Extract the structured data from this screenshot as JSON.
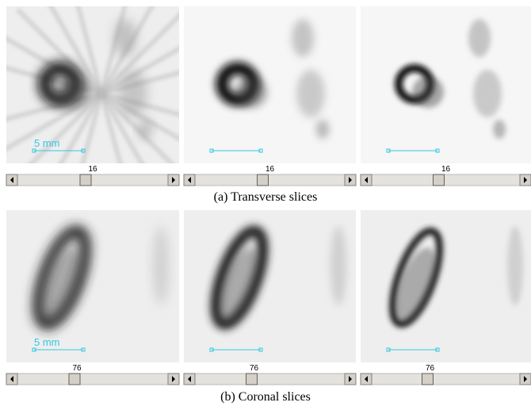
{
  "figures": [
    {
      "caption": "(a) Transverse slices",
      "panels": [
        {
          "slice": 16,
          "scale_label": "5 mm"
        },
        {
          "slice": 16
        },
        {
          "slice": 16
        }
      ]
    },
    {
      "caption": "(b) Coronal slices",
      "panels": [
        {
          "slice": 76,
          "scale_label": "5 mm"
        },
        {
          "slice": 76
        },
        {
          "slice": 76
        }
      ]
    }
  ]
}
